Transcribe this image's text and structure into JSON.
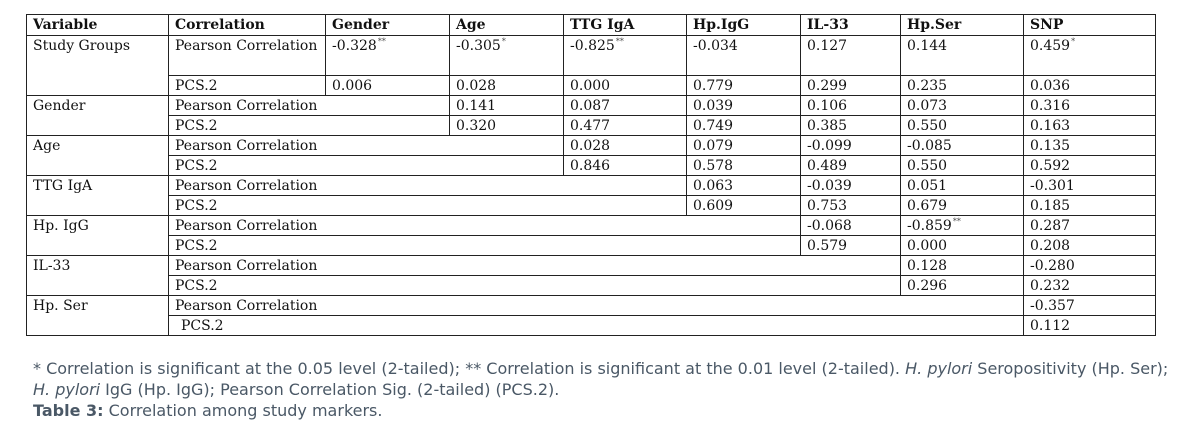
{
  "table": {
    "headers": [
      "Variable",
      "Correlation",
      "Gender",
      "Age",
      "TTG IgA",
      "Hp.IgG",
      "IL-33",
      "Hp.Ser",
      "SNP"
    ],
    "study_groups": {
      "variable": "Study Groups",
      "pearson_label": "Pearson Correlation",
      "pcs_label": "PCS.2",
      "pearson": [
        {
          "v": "-0.328",
          "sig": "**"
        },
        {
          "v": "-0.305",
          "sig": "*"
        },
        {
          "v": "-0.825",
          "sig": "**"
        },
        {
          "v": "-0.034",
          "sig": ""
        },
        {
          "v": "0.127",
          "sig": ""
        },
        {
          "v": "0.144",
          "sig": ""
        },
        {
          "v": "0.459",
          "sig": "*"
        }
      ],
      "pcs": [
        "0.006",
        "0.028",
        "0.000",
        "0.779",
        "0.299",
        "0.235",
        "0.036"
      ]
    },
    "gender": {
      "variable": "Gender",
      "pearson_label": "Pearson Correlation",
      "pcs_label": "PCS.2",
      "pearson": [
        "0.141",
        "0.087",
        "0.039",
        "0.106",
        "0.073",
        "0.316"
      ],
      "pcs": [
        "0.320",
        "0.477",
        "0.749",
        "0.385",
        "0.550",
        "0.163"
      ]
    },
    "age": {
      "variable": "Age",
      "pearson_label": "Pearson Correlation",
      "pcs_label": "PCS.2",
      "pearson": [
        "0.028",
        "0.079",
        "-0.099",
        "-0.085",
        "0.135"
      ],
      "pcs": [
        "0.846",
        "0.578",
        "0.489",
        "0.550",
        "0.592"
      ]
    },
    "ttg": {
      "variable": "TTG IgA",
      "pearson_label": "Pearson Correlation",
      "pcs_label": "PCS.2",
      "pearson": [
        "0.063",
        "-0.039",
        "0.051",
        "-0.301"
      ],
      "pcs": [
        "0.609",
        "0.753",
        "0.679",
        "0.185"
      ]
    },
    "hpigg": {
      "variable": "Hp. IgG",
      "pearson_label": "Pearson Correlation",
      "pcs_label": "PCS.2",
      "pearson": [
        {
          "v": "-0.068",
          "sig": ""
        },
        {
          "v": "-0.859",
          "sig": "**"
        },
        {
          "v": "0.287",
          "sig": ""
        }
      ],
      "pcs": [
        "0.579",
        "0.000",
        "0.208"
      ]
    },
    "il33": {
      "variable": "IL-33",
      "pearson_label": "Pearson Correlation",
      "pcs_label": "PCS.2",
      "pearson": [
        "0.128",
        "-0.280"
      ],
      "pcs": [
        "0.296",
        "0.232"
      ]
    },
    "hpser": {
      "variable": "Hp. Ser",
      "pearson_label": "Pearson Correlation",
      "pcs_label": "PCS.2",
      "pearson": [
        "-0.357"
      ],
      "pcs": [
        "0.112"
      ]
    }
  },
  "footnote": {
    "part1": "* Correlation is significant at the 0.05 level (2-tailed); ** Correlation is significant at the 0.01 level (2-tailed).  ",
    "hpylori1": "H. pylori",
    "part2": " Seropositivity (Hp. Ser); ",
    "hpylori2": "H. pylori",
    "part3": " IgG (Hp. IgG); Pearson Correlation Sig. (2-tailed) (PCS.2)."
  },
  "caption": {
    "label": "Table 3:",
    "text": " Correlation among study markers."
  }
}
